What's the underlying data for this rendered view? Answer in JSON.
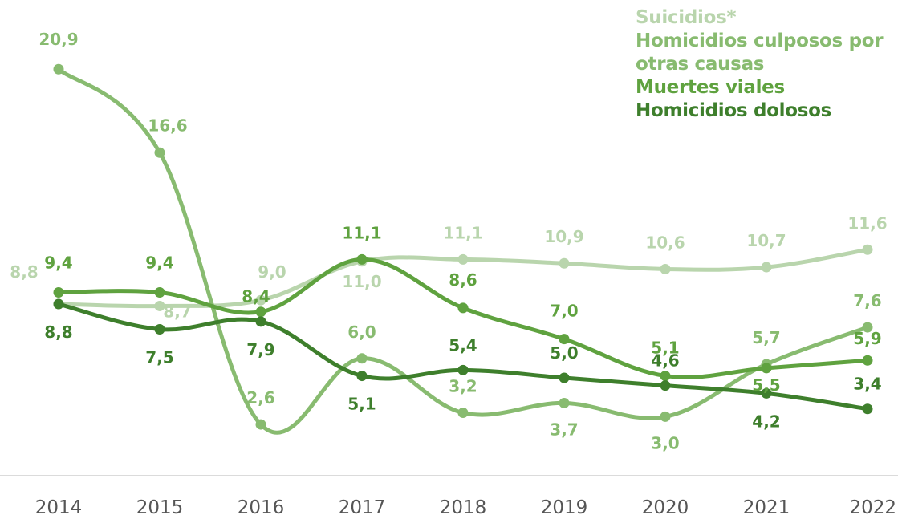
{
  "chart_data": {
    "type": "line",
    "x": [
      "2014",
      "2015",
      "2016",
      "2017",
      "2018",
      "2019",
      "2020",
      "2021",
      "2022"
    ],
    "ylim": [
      0,
      22
    ],
    "grid": false,
    "legend_position": "top-right",
    "series": [
      {
        "name": "Suicidios*",
        "color": "#b9d5ad",
        "values": [
          8.8,
          8.7,
          9.0,
          11.0,
          11.1,
          10.9,
          10.6,
          10.7,
          11.6
        ],
        "labels": [
          "8,8",
          "8,7",
          "9,0",
          "11,0",
          "11,1",
          "10,9",
          "10,6",
          "10,7",
          "11,6"
        ]
      },
      {
        "name": "Homicidios culposos por otras causas",
        "color": "#88bb70",
        "values": [
          20.9,
          16.6,
          2.6,
          6.0,
          3.2,
          3.7,
          3.0,
          5.7,
          7.6
        ],
        "labels": [
          "20,9",
          "16,6",
          "2,6",
          "6,0",
          "3,2",
          "3,7",
          "3,0",
          "5,7",
          "7,6"
        ]
      },
      {
        "name": "Muertes viales",
        "color": "#5fa23f",
        "values": [
          9.4,
          9.4,
          8.4,
          11.1,
          8.6,
          7.0,
          5.1,
          5.5,
          5.9
        ],
        "labels": [
          "9,4",
          "9,4",
          "8,4",
          "11,1",
          "8,6",
          "7,0",
          "5,1",
          "5,5",
          "5,9"
        ]
      },
      {
        "name": "Homicidios dolosos",
        "color": "#3e7f2c",
        "values": [
          8.8,
          7.5,
          7.9,
          5.1,
          5.4,
          5.0,
          4.6,
          4.2,
          3.4
        ],
        "labels": [
          "8,8",
          "7,5",
          "7,9",
          "5,1",
          "5,4",
          "5,0",
          "4,6",
          "4,2",
          "3,4"
        ]
      }
    ]
  },
  "legend": {
    "items": [
      "Suicidios*",
      "Homicidios culposos por otras causas",
      "Muertes viales",
      "Homicidios dolosos"
    ]
  }
}
